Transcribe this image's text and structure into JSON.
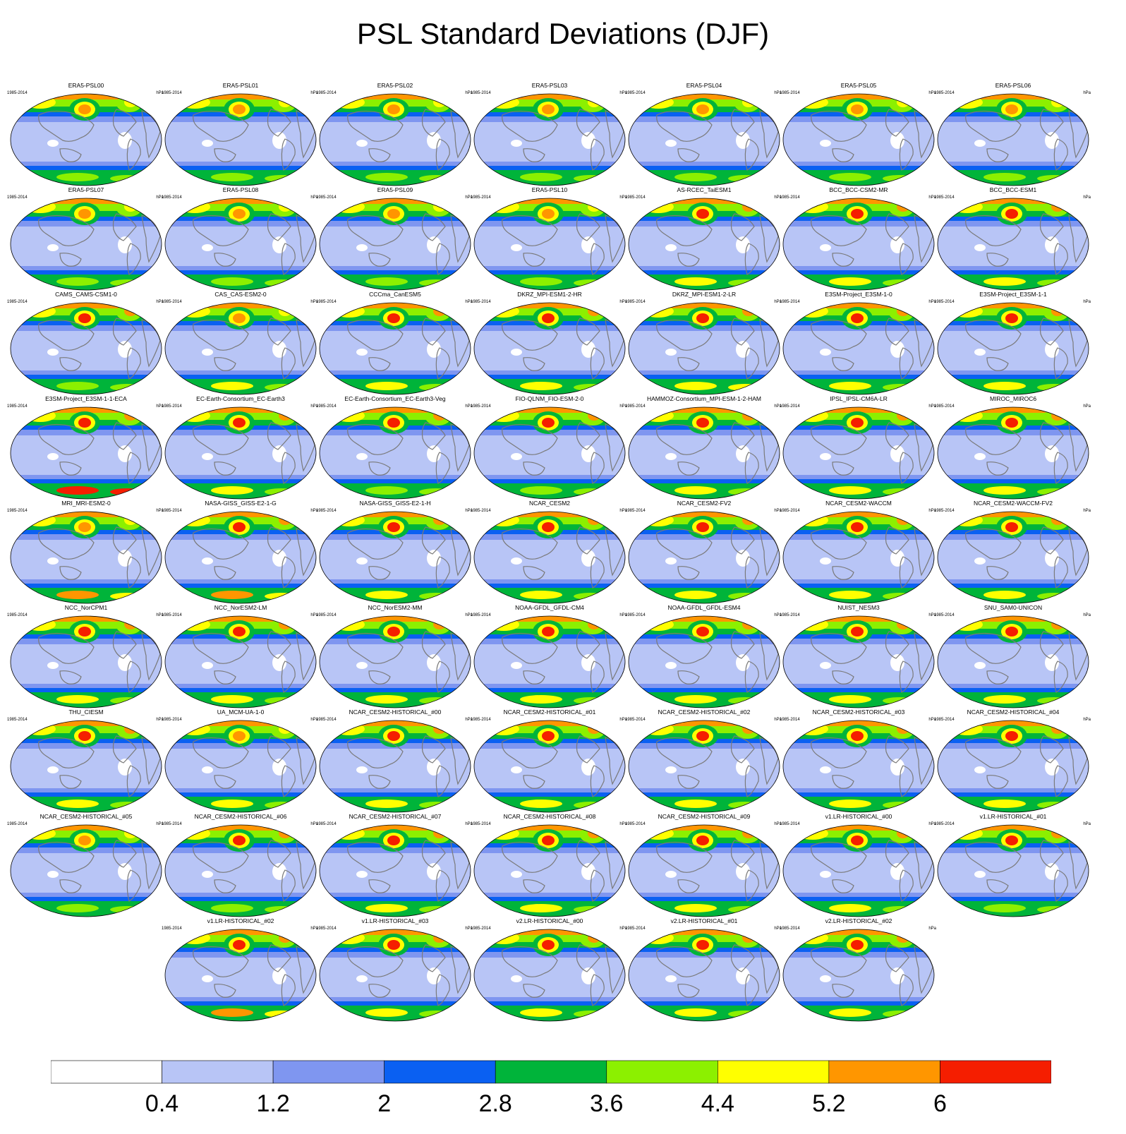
{
  "title": "PSL Standard Deviations (DJF)",
  "colors": {
    "levels": [
      "#ffffff",
      "#b8c5f6",
      "#7f96f0",
      "#0a60f2",
      "#00b43a",
      "#8cf000",
      "#ffff00",
      "#ff9600",
      "#f51e00"
    ],
    "coast": "#7a7a7a",
    "frame": "#000000"
  },
  "chart_data": {
    "type": "heatmap",
    "title": "PSL Standard Deviations (DJF)",
    "colorbar": {
      "labels": [
        "0.4",
        "1.2",
        "2",
        "2.8",
        "3.6",
        "4.4",
        "5.2",
        "6"
      ],
      "boundaries": [
        0.4,
        1.2,
        2.0,
        2.8,
        3.6,
        4.4,
        5.2,
        6.0
      ]
    },
    "panel_period": "1985-2014",
    "panel_units": "hPa",
    "panels": [
      {
        "name": "ERA5-PSL00",
        "nh_max": 5.6,
        "sh_max": 4.0
      },
      {
        "name": "ERA5-PSL01",
        "nh_max": 5.6,
        "sh_max": 4.0
      },
      {
        "name": "ERA5-PSL02",
        "nh_max": 5.6,
        "sh_max": 4.0
      },
      {
        "name": "ERA5-PSL03",
        "nh_max": 5.6,
        "sh_max": 4.0
      },
      {
        "name": "ERA5-PSL04",
        "nh_max": 5.6,
        "sh_max": 4.0
      },
      {
        "name": "ERA5-PSL05",
        "nh_max": 5.6,
        "sh_max": 4.0
      },
      {
        "name": "ERA5-PSL06",
        "nh_max": 5.6,
        "sh_max": 4.0
      },
      {
        "name": "ERA5-PSL07",
        "nh_max": 5.6,
        "sh_max": 4.0
      },
      {
        "name": "ERA5-PSL08",
        "nh_max": 5.6,
        "sh_max": 4.0
      },
      {
        "name": "ERA5-PSL09",
        "nh_max": 5.6,
        "sh_max": 4.0
      },
      {
        "name": "ERA5-PSL10",
        "nh_max": 5.6,
        "sh_max": 4.0
      },
      {
        "name": "AS-RCEC_TaiESM1",
        "nh_max": 6.4,
        "sh_max": 4.4
      },
      {
        "name": "BCC_BCC-CSM2-MR",
        "nh_max": 6.4,
        "sh_max": 4.4
      },
      {
        "name": "BCC_BCC-ESM1",
        "nh_max": 6.4,
        "sh_max": 4.4
      },
      {
        "name": "CAMS_CAMS-CSM1-0",
        "nh_max": 6.4,
        "sh_max": 4.0
      },
      {
        "name": "CAS_CAS-ESM2-0",
        "nh_max": 5.6,
        "sh_max": 4.4
      },
      {
        "name": "CCCma_CanESM5",
        "nh_max": 6.4,
        "sh_max": 4.4
      },
      {
        "name": "DKRZ_MPI-ESM1-2-HR",
        "nh_max": 6.4,
        "sh_max": 4.4
      },
      {
        "name": "DKRZ_MPI-ESM1-2-LR",
        "nh_max": 6.4,
        "sh_max": 5.0
      },
      {
        "name": "E3SM-Project_E3SM-1-0",
        "nh_max": 6.4,
        "sh_max": 4.4
      },
      {
        "name": "E3SM-Project_E3SM-1-1",
        "nh_max": 6.4,
        "sh_max": 4.4
      },
      {
        "name": "E3SM-Project_E3SM-1-1-ECA",
        "nh_max": 6.4,
        "sh_max": 6.4
      },
      {
        "name": "EC-Earth-Consortium_EC-Earth3",
        "nh_max": 6.4,
        "sh_max": 4.4
      },
      {
        "name": "EC-Earth-Consortium_EC-Earth3-Veg",
        "nh_max": 6.4,
        "sh_max": 4.0
      },
      {
        "name": "FIO-QLNM_FIO-ESM-2-0",
        "nh_max": 6.4,
        "sh_max": 4.0
      },
      {
        "name": "HAMMOZ-Consortium_MPI-ESM-1-2-HAM",
        "nh_max": 6.4,
        "sh_max": 4.4
      },
      {
        "name": "IPSL_IPSL-CM6A-LR",
        "nh_max": 6.4,
        "sh_max": 4.4
      },
      {
        "name": "MIROC_MIROC6",
        "nh_max": 6.4,
        "sh_max": 4.4
      },
      {
        "name": "MRI_MRI-ESM2-0",
        "nh_max": 5.6,
        "sh_max": 5.6
      },
      {
        "name": "NASA-GISS_GISS-E2-1-G",
        "nh_max": 6.4,
        "sh_max": 5.6
      },
      {
        "name": "NASA-GISS_GISS-E2-1-H",
        "nh_max": 6.4,
        "sh_max": 4.4
      },
      {
        "name": "NCAR_CESM2",
        "nh_max": 6.4,
        "sh_max": 4.4
      },
      {
        "name": "NCAR_CESM2-FV2",
        "nh_max": 6.4,
        "sh_max": 4.4
      },
      {
        "name": "NCAR_CESM2-WACCM",
        "nh_max": 6.4,
        "sh_max": 4.4
      },
      {
        "name": "NCAR_CESM2-WACCM-FV2",
        "nh_max": 6.4,
        "sh_max": 4.4
      },
      {
        "name": "NCC_NorCPM1",
        "nh_max": 6.4,
        "sh_max": 4.4
      },
      {
        "name": "NCC_NorESM2-LM",
        "nh_max": 6.4,
        "sh_max": 4.4
      },
      {
        "name": "NCC_NorESM2-MM",
        "nh_max": 6.4,
        "sh_max": 4.4
      },
      {
        "name": "NOAA-GFDL_GFDL-CM4",
        "nh_max": 6.4,
        "sh_max": 4.4
      },
      {
        "name": "NOAA-GFDL_GFDL-ESM4",
        "nh_max": 6.4,
        "sh_max": 4.4
      },
      {
        "name": "NUIST_NESM3",
        "nh_max": 6.4,
        "sh_max": 4.4
      },
      {
        "name": "SNU_SAM0-UNICON",
        "nh_max": 6.4,
        "sh_max": 4.4
      },
      {
        "name": "THU_CIESM",
        "nh_max": 6.4,
        "sh_max": 4.4
      },
      {
        "name": "UA_MCM-UA-1-0",
        "nh_max": 5.6,
        "sh_max": 4.4
      },
      {
        "name": "NCAR_CESM2-HISTORICAL_#00",
        "nh_max": 6.4,
        "sh_max": 4.4
      },
      {
        "name": "NCAR_CESM2-HISTORICAL_#01",
        "nh_max": 6.4,
        "sh_max": 4.4
      },
      {
        "name": "NCAR_CESM2-HISTORICAL_#02",
        "nh_max": 6.4,
        "sh_max": 4.4
      },
      {
        "name": "NCAR_CESM2-HISTORICAL_#03",
        "nh_max": 6.4,
        "sh_max": 4.4
      },
      {
        "name": "NCAR_CESM2-HISTORICAL_#04",
        "nh_max": 6.4,
        "sh_max": 4.4
      },
      {
        "name": "NCAR_CESM2-HISTORICAL_#05",
        "nh_max": 5.6,
        "sh_max": 4.0
      },
      {
        "name": "NCAR_CESM2-HISTORICAL_#06",
        "nh_max": 6.4,
        "sh_max": 4.0
      },
      {
        "name": "NCAR_CESM2-HISTORICAL_#07",
        "nh_max": 6.4,
        "sh_max": 4.4
      },
      {
        "name": "NCAR_CESM2-HISTORICAL_#08",
        "nh_max": 6.4,
        "sh_max": 4.4
      },
      {
        "name": "NCAR_CESM2-HISTORICAL_#09",
        "nh_max": 6.4,
        "sh_max": 4.4
      },
      {
        "name": "v1.LR-HISTORICAL_#00",
        "nh_max": 6.4,
        "sh_max": 4.4
      },
      {
        "name": "v1.LR-HISTORICAL_#01",
        "nh_max": 6.4,
        "sh_max": 4.0
      },
      {
        "name": "v1.LR-HISTORICAL_#02",
        "nh_max": 6.4,
        "sh_max": 5.6
      },
      {
        "name": "v1.LR-HISTORICAL_#03",
        "nh_max": 6.4,
        "sh_max": 4.4
      },
      {
        "name": "v2.LR-HISTORICAL_#00",
        "nh_max": 6.4,
        "sh_max": 4.4
      },
      {
        "name": "v2.LR-HISTORICAL_#01",
        "nh_max": 6.4,
        "sh_max": 4.4
      },
      {
        "name": "v2.LR-HISTORICAL_#02",
        "nh_max": 6.4,
        "sh_max": 4.4
      }
    ]
  }
}
